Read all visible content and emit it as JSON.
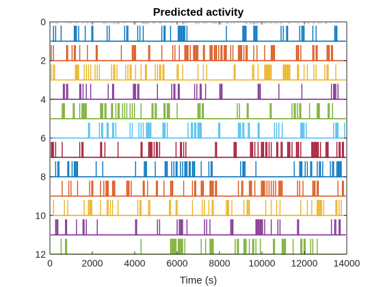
{
  "chart_data": {
    "type": "line",
    "title": "Predicted activity",
    "xlabel": "Time (s)",
    "ylabel": "",
    "xlim": [
      0,
      14000
    ],
    "ylim": [
      0,
      12
    ],
    "y_reversed": true,
    "xticks": [
      0,
      2000,
      4000,
      6000,
      8000,
      10000,
      12000,
      14000
    ],
    "xtick_labels": [
      "0",
      "2000",
      "4000",
      "6000",
      "8000",
      "10000",
      "12000",
      "14000"
    ],
    "yticks": [
      0,
      2,
      4,
      6,
      8,
      10,
      12
    ],
    "ytick_labels": [
      "0",
      "2",
      "4",
      "6",
      "8",
      "10",
      "12"
    ],
    "grid": false,
    "series": [
      {
        "channel": 1,
        "baseline": 1,
        "spike_height": 0.8,
        "color": "#0072BD"
      },
      {
        "channel": 2,
        "baseline": 2,
        "spike_height": 0.8,
        "color": "#D95319"
      },
      {
        "channel": 3,
        "baseline": 3,
        "spike_height": 0.8,
        "color": "#EDB120"
      },
      {
        "channel": 4,
        "baseline": 4,
        "spike_height": 0.8,
        "color": "#7E2F8E"
      },
      {
        "channel": 5,
        "baseline": 5,
        "spike_height": 0.8,
        "color": "#77AC30"
      },
      {
        "channel": 6,
        "baseline": 6,
        "spike_height": 0.8,
        "color": "#4DBEEE"
      },
      {
        "channel": 7,
        "baseline": 7,
        "spike_height": 0.8,
        "color": "#A2142F"
      },
      {
        "channel": 8,
        "baseline": 8,
        "spike_height": 0.8,
        "color": "#0072BD"
      },
      {
        "channel": 9,
        "baseline": 9,
        "spike_height": 0.8,
        "color": "#D95319"
      },
      {
        "channel": 10,
        "baseline": 10,
        "spike_height": 0.8,
        "color": "#EDB120"
      },
      {
        "channel": 11,
        "baseline": 11,
        "spike_height": 0.8,
        "color": "#7E2F8E"
      },
      {
        "channel": 12,
        "baseline": 12,
        "spike_height": 0.8,
        "color": "#77AC30"
      }
    ]
  }
}
